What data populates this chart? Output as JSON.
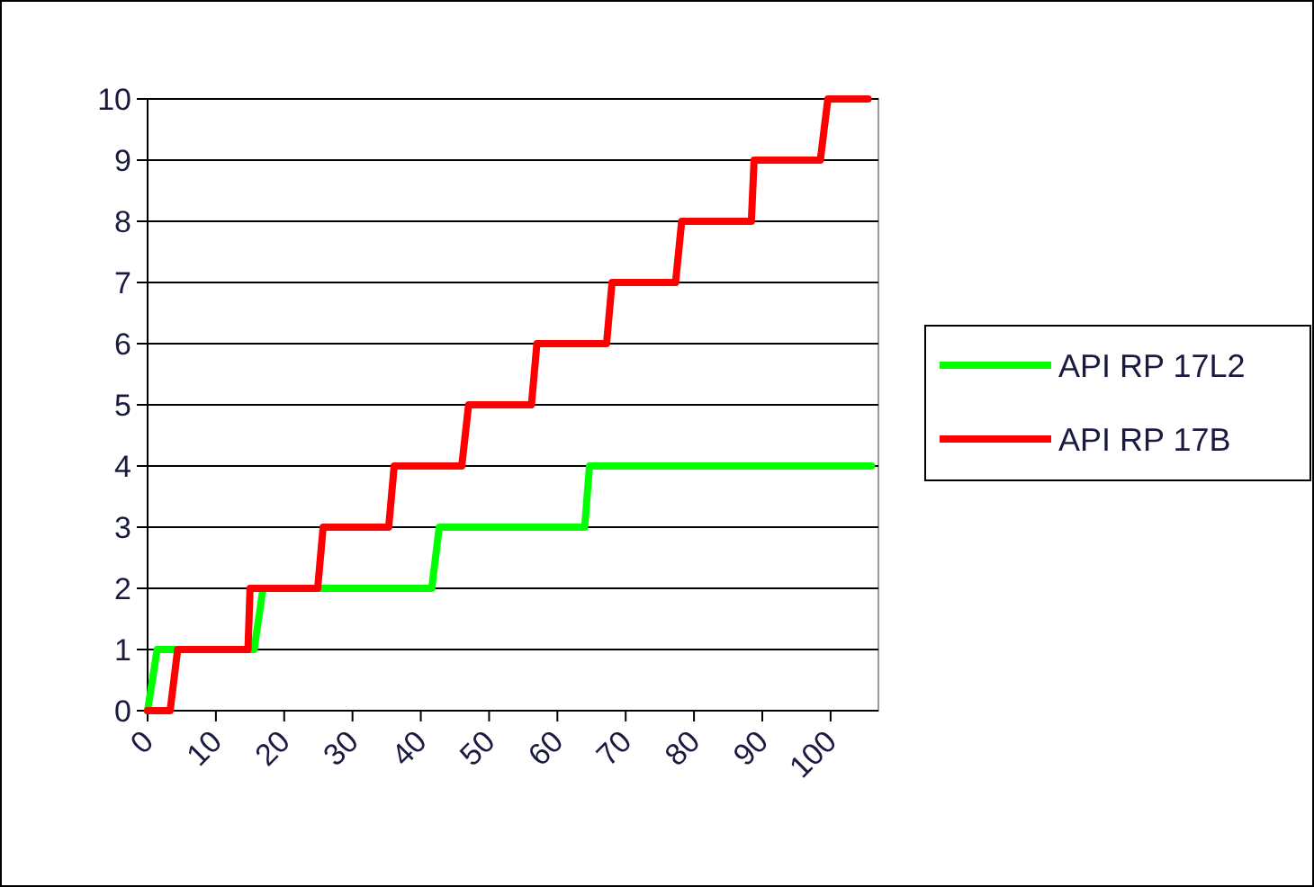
{
  "chart_data": {
    "type": "line",
    "xlim": [
      0,
      107
    ],
    "xticks": [
      0,
      10,
      20,
      30,
      40,
      50,
      60,
      70,
      80,
      90,
      100
    ],
    "ylim": [
      0,
      10
    ],
    "yticks": [
      0,
      1,
      2,
      3,
      4,
      5,
      6,
      7,
      8,
      9,
      10
    ],
    "grid": "y",
    "legend": "right",
    "line_style": "solid",
    "series": [
      {
        "name": "API RP 17L2",
        "color": "#00ff00",
        "x": [
          0,
          1.4,
          15.6,
          16.9,
          41.6,
          42.7,
          64,
          64.7,
          106
        ],
        "values": [
          0,
          1,
          1,
          2,
          2,
          3,
          3,
          4,
          4
        ]
      },
      {
        "name": "API RP 17B",
        "color": "#ff0000",
        "x": [
          0,
          3.3,
          4.4,
          14.7,
          15,
          24.9,
          25.7,
          35.3,
          36.1,
          46,
          47,
          56.2,
          57,
          67.2,
          68,
          77.3,
          78.2,
          88.4,
          88.8,
          98.5,
          99.6,
          105.5
        ],
        "values": [
          0,
          0,
          1,
          1,
          2,
          2,
          3,
          3,
          4,
          4,
          5,
          5,
          6,
          6,
          7,
          7,
          8,
          8,
          9,
          9,
          10,
          10
        ]
      }
    ]
  }
}
